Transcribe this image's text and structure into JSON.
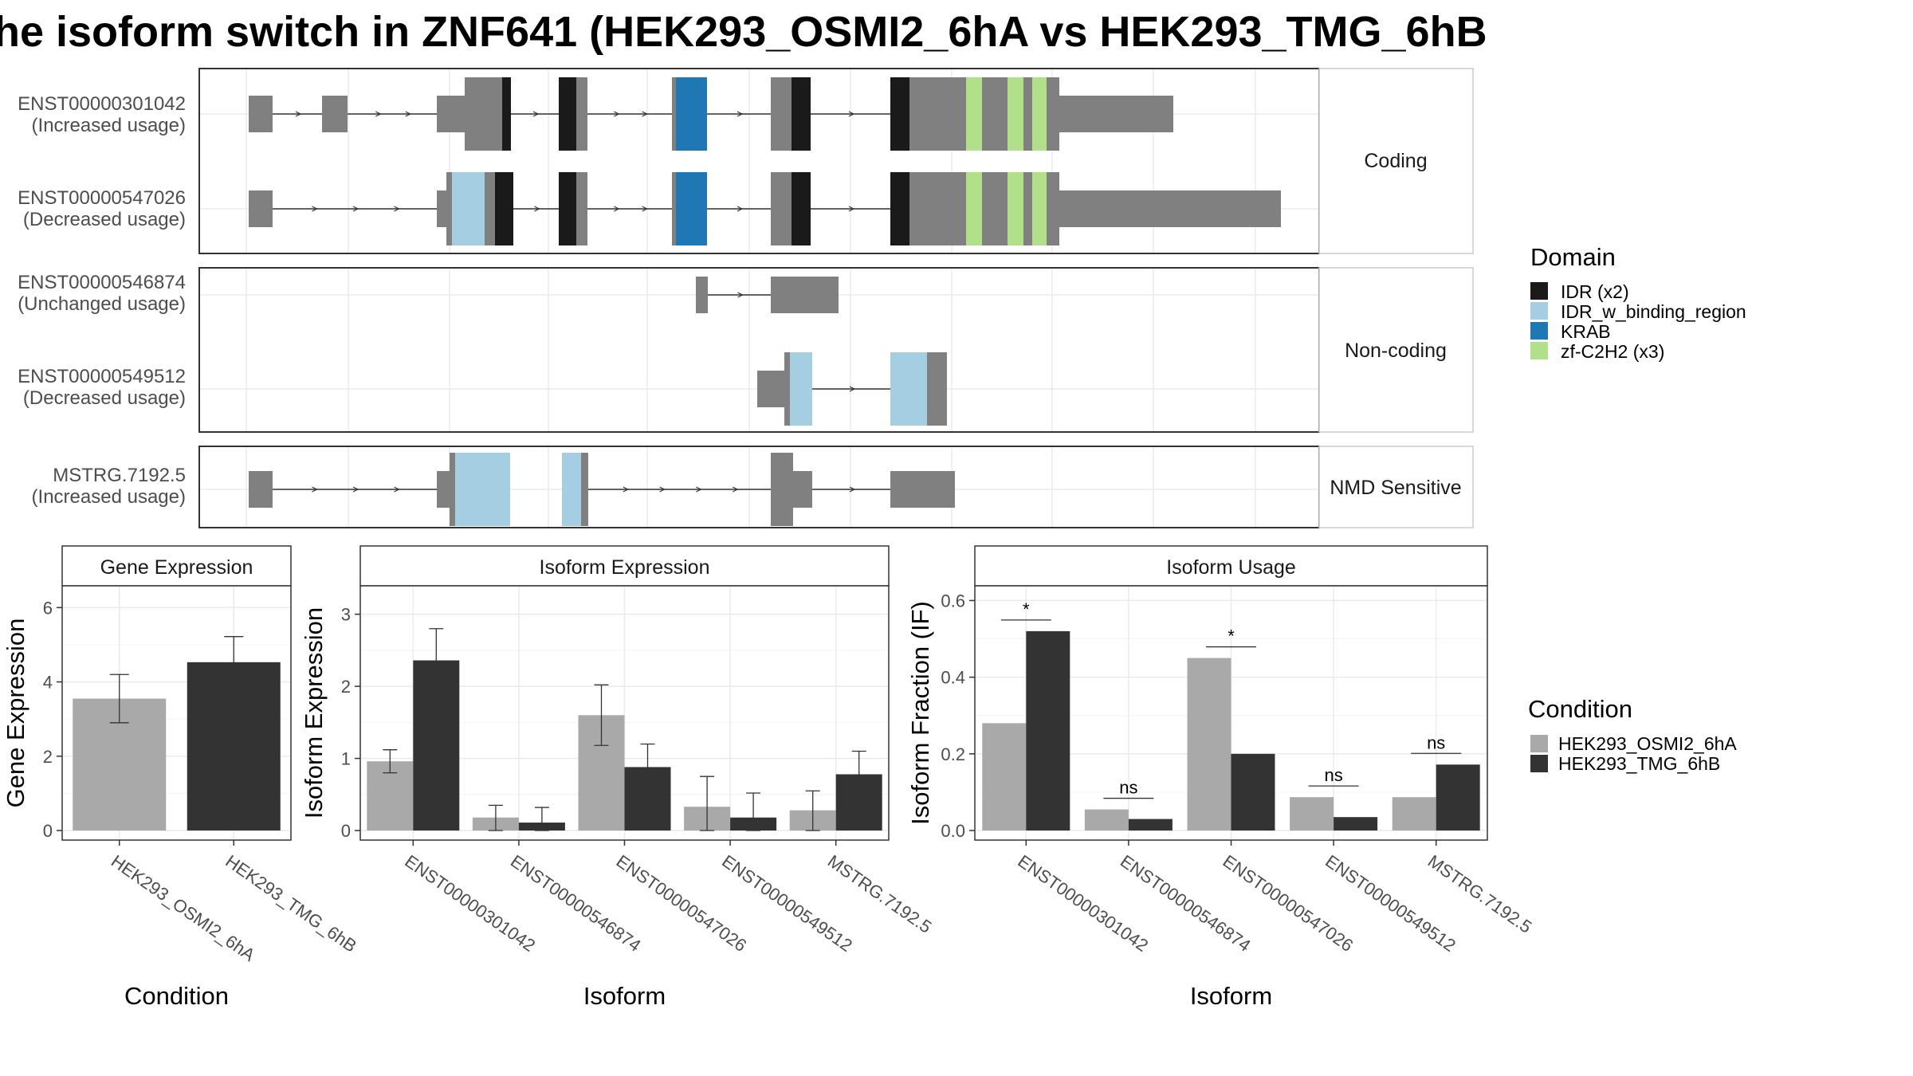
{
  "title": "he isoform switch in ZNF641 (HEK293_OSMI2_6hA vs HEK293_TMG_6hB",
  "colors": {
    "exon": "#808080",
    "IDR (x2)": "#1a1a1a",
    "IDR_w_binding_region": "#a6cee3",
    "KRAB": "#1f78b4",
    "zf-C2H2 (x3)": "#b2df8a",
    "OSMI2": "#a9a9a9",
    "TMG": "#333333"
  },
  "structure": {
    "groups": [
      {
        "label": "Coding",
        "transcripts": [
          {
            "id": "ENST00000301042",
            "usage": "(Increased usage)"
          },
          {
            "id": "ENST00000547026",
            "usage": "(Decreased usage)"
          }
        ]
      },
      {
        "label": "Non-coding",
        "transcripts": [
          {
            "id": "ENST00000546874",
            "usage": "(Unchanged usage)"
          },
          {
            "id": "ENST00000549512",
            "usage": "(Decreased usage)"
          }
        ]
      },
      {
        "label": "NMD Sensitive",
        "transcripts": [
          {
            "id": "MSTRG.7192.5",
            "usage": "(Increased usage)"
          }
        ]
      }
    ]
  },
  "legend": {
    "domain_title": "Domain",
    "domains": [
      {
        "name": "IDR (x2)",
        "color": "#1a1a1a"
      },
      {
        "name": "IDR_w_binding_region",
        "color": "#a6cee3"
      },
      {
        "name": "KRAB",
        "color": "#1f78b4"
      },
      {
        "name": "zf-C2H2 (x3)",
        "color": "#b2df8a"
      }
    ],
    "condition_title": "Condition",
    "conditions": [
      {
        "name": "HEK293_OSMI2_6hA",
        "color": "#a9a9a9"
      },
      {
        "name": "HEK293_TMG_6hB",
        "color": "#333333"
      }
    ]
  },
  "chart_data": [
    {
      "type": "bar",
      "title": "Gene Expression",
      "xlabel": "Condition",
      "ylabel": "Gene Expression",
      "ylim": [
        0,
        6.5
      ],
      "yticks": [
        0,
        2,
        4,
        6
      ],
      "categories": [
        "HEK293_OSMI2_6hA",
        "HEK293_TMG_6hB"
      ],
      "values": [
        3.55,
        4.53
      ],
      "errors": [
        [
          2.9,
          4.2
        ],
        [
          3.85,
          5.22
        ]
      ]
    },
    {
      "type": "bar",
      "title": "Isoform Expression",
      "xlabel": "Isoform",
      "ylabel": "Isoform Expression",
      "ylim": [
        0,
        3.35
      ],
      "yticks": [
        0,
        1,
        2,
        3
      ],
      "categories": [
        "ENST00000301042",
        "ENST00000546874",
        "ENST00000547026",
        "ENST00000549512",
        "MSTRG.7192.5"
      ],
      "series": [
        {
          "name": "HEK293_OSMI2_6hA",
          "values": [
            0.96,
            0.18,
            1.6,
            0.33,
            0.28
          ],
          "errors": [
            [
              0.8,
              1.12
            ],
            [
              0.0,
              0.35
            ],
            [
              1.18,
              2.02
            ],
            [
              0.0,
              0.75
            ],
            [
              0.0,
              0.55
            ]
          ]
        },
        {
          "name": "HEK293_TMG_6hB",
          "values": [
            2.36,
            0.11,
            0.88,
            0.18,
            0.78
          ],
          "errors": [
            [
              1.92,
              2.8
            ],
            [
              0.0,
              0.32
            ],
            [
              0.55,
              1.2
            ],
            [
              0.0,
              0.52
            ],
            [
              0.45,
              1.1
            ]
          ]
        }
      ]
    },
    {
      "type": "bar",
      "title": "Isoform Usage",
      "xlabel": "Isoform",
      "ylabel": "Isoform Fraction (IF)",
      "ylim": [
        0,
        0.63
      ],
      "yticks": [
        0.0,
        0.2,
        0.4,
        0.6
      ],
      "categories": [
        "ENST00000301042",
        "ENST00000546874",
        "ENST00000547026",
        "ENST00000549512",
        "MSTRG.7192.5"
      ],
      "series": [
        {
          "name": "HEK293_OSMI2_6hA",
          "values": [
            0.28,
            0.055,
            0.45,
            0.087,
            0.087
          ]
        },
        {
          "name": "HEK293_TMG_6hB",
          "values": [
            0.52,
            0.03,
            0.2,
            0.035,
            0.172
          ]
        }
      ],
      "significance": [
        "*",
        "ns",
        "*",
        "ns",
        "ns"
      ]
    }
  ]
}
